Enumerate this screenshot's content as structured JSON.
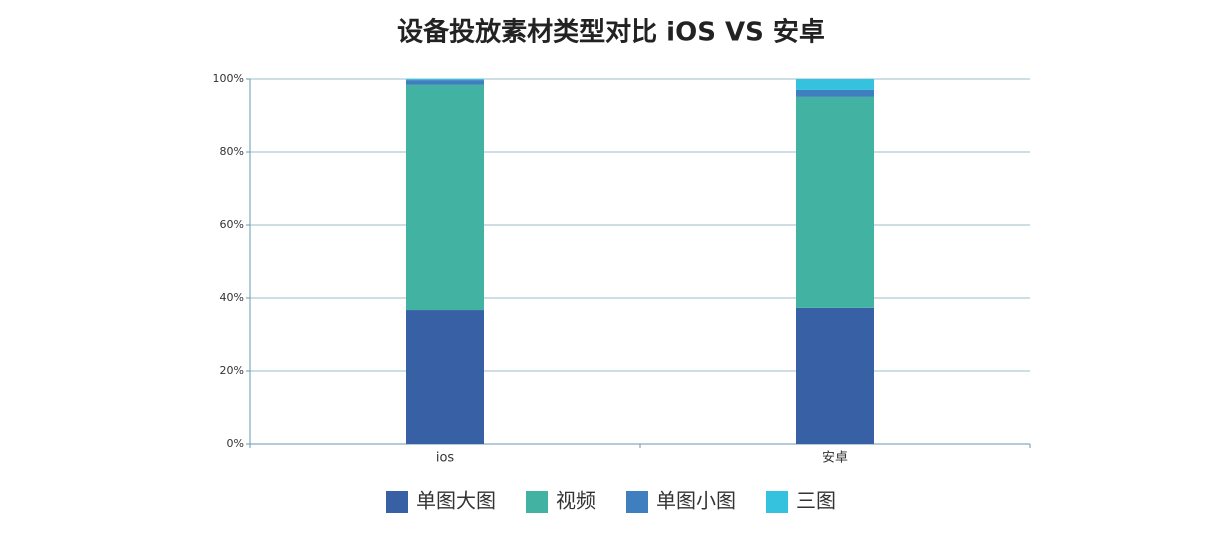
{
  "chart_data": {
    "type": "stacked_bar",
    "title": "设备投放素材类型对比  iOS VS 安卓",
    "categories": [
      "ios",
      "安卓"
    ],
    "series": [
      {
        "name": "单图大图",
        "color": "#3860a5",
        "values": [
          36.7,
          37.3
        ]
      },
      {
        "name": "视频",
        "color": "#42b3a3",
        "values": [
          61.7,
          57.8
        ]
      },
      {
        "name": "单图小图",
        "color": "#3f7fbf",
        "values": [
          1.3,
          1.9
        ]
      },
      {
        "name": "三图",
        "color": "#35c2de",
        "values": [
          0.3,
          3.0
        ]
      }
    ],
    "ylim": [
      0,
      100
    ],
    "yticks": [
      {
        "value": 0,
        "label": "0%"
      },
      {
        "value": 20,
        "label": "20%"
      },
      {
        "value": 40,
        "label": "40%"
      },
      {
        "value": 60,
        "label": "60%"
      },
      {
        "value": 80,
        "label": "80%"
      },
      {
        "value": 100,
        "label": "100%"
      }
    ],
    "grid": true,
    "legend": "bottom"
  }
}
